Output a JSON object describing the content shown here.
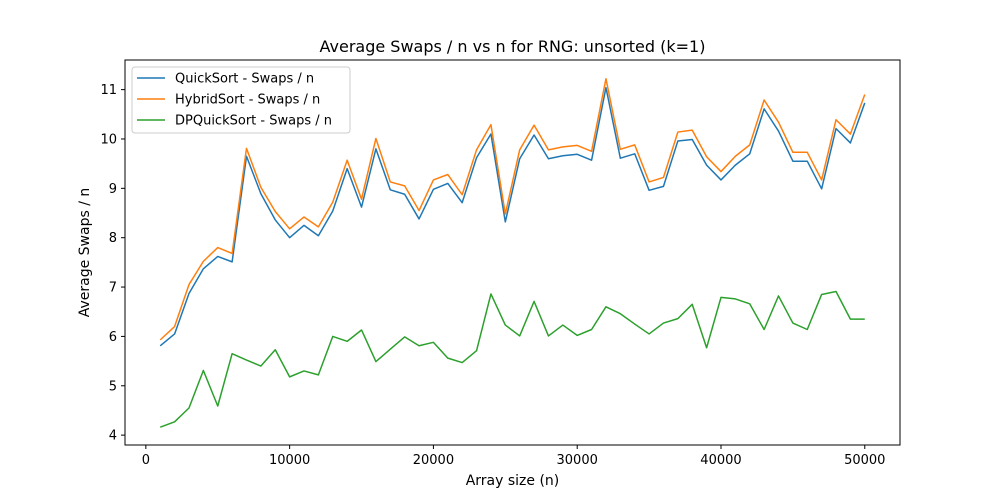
{
  "chart_data": {
    "type": "line",
    "title": "Average Swaps / n vs n for RNG: unsorted (k=1)",
    "xlabel": "Array size (n)",
    "ylabel": "Average Swaps / n",
    "xlim": [
      -1450,
      52450
    ],
    "ylim": [
      3.8,
      11.6
    ],
    "xticks": [
      0,
      10000,
      20000,
      30000,
      40000,
      50000
    ],
    "yticks": [
      4,
      5,
      6,
      7,
      8,
      9,
      10,
      11
    ],
    "grid": false,
    "legend_position": "top-left",
    "x": [
      1000,
      2000,
      3000,
      4000,
      5000,
      6000,
      7000,
      8000,
      9000,
      10000,
      11000,
      12000,
      13000,
      14000,
      15000,
      16000,
      17000,
      18000,
      19000,
      20000,
      21000,
      22000,
      23000,
      24000,
      25000,
      26000,
      27000,
      28000,
      29000,
      30000,
      31000,
      32000,
      33000,
      34000,
      35000,
      36000,
      37000,
      38000,
      39000,
      40000,
      41000,
      42000,
      43000,
      44000,
      45000,
      46000,
      47000,
      48000,
      49000,
      50000
    ],
    "series": [
      {
        "name": "QuickSort - Swaps / n",
        "color": "#1f77b4",
        "values": [
          5.81,
          6.05,
          6.87,
          7.37,
          7.62,
          7.51,
          9.65,
          8.89,
          8.36,
          8.0,
          8.25,
          8.04,
          8.54,
          9.4,
          8.62,
          9.8,
          8.97,
          8.88,
          8.38,
          8.98,
          9.1,
          8.71,
          9.62,
          10.1,
          8.32,
          9.6,
          10.08,
          9.6,
          9.66,
          9.69,
          9.57,
          11.04,
          9.61,
          9.7,
          8.96,
          9.04,
          9.96,
          9.99,
          9.47,
          9.17,
          9.47,
          9.7,
          10.61,
          10.16,
          9.55,
          9.55,
          8.99,
          10.21,
          9.92,
          10.73
        ]
      },
      {
        "name": "HybridSort - Swaps / n",
        "color": "#ff7f0e",
        "values": [
          5.93,
          6.2,
          7.05,
          7.52,
          7.8,
          7.68,
          9.81,
          9.02,
          8.53,
          8.18,
          8.42,
          8.22,
          8.72,
          9.57,
          8.78,
          10.01,
          9.13,
          9.05,
          8.55,
          9.17,
          9.28,
          8.87,
          9.78,
          10.29,
          8.48,
          9.78,
          10.28,
          9.78,
          9.84,
          9.87,
          9.75,
          11.22,
          9.79,
          9.88,
          9.13,
          9.22,
          10.14,
          10.18,
          9.64,
          9.34,
          9.65,
          9.88,
          10.79,
          10.34,
          9.73,
          9.73,
          9.17,
          10.39,
          10.1,
          10.9
        ]
      },
      {
        "name": "DPQuickSort - Swaps / n",
        "color": "#2ca02c",
        "values": [
          4.16,
          4.27,
          4.55,
          5.31,
          4.59,
          5.65,
          5.52,
          5.4,
          5.73,
          5.18,
          5.3,
          5.22,
          6.0,
          5.9,
          6.13,
          5.49,
          5.74,
          5.99,
          5.81,
          5.88,
          5.56,
          5.47,
          5.71,
          6.86,
          6.23,
          6.01,
          6.71,
          6.01,
          6.23,
          6.02,
          6.14,
          6.6,
          6.46,
          6.25,
          6.05,
          6.27,
          6.36,
          6.65,
          5.77,
          6.79,
          6.76,
          6.66,
          6.14,
          6.82,
          6.27,
          6.14,
          6.85,
          6.91,
          6.35,
          6.35
        ]
      }
    ]
  }
}
